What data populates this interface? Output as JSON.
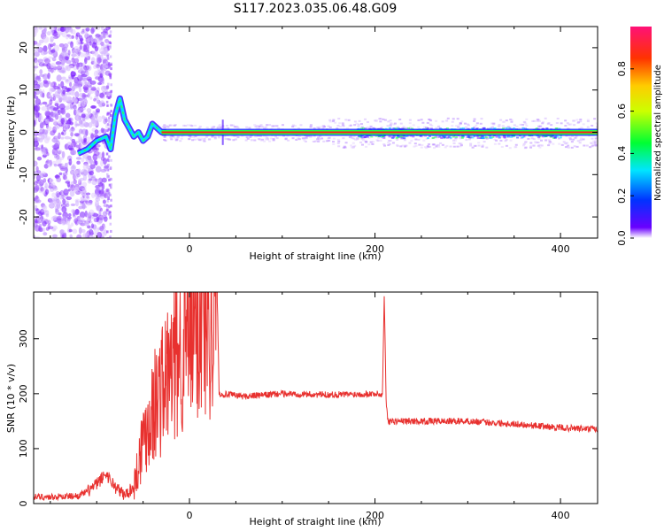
{
  "title": "S117.2023.035.06.48.G09",
  "colors": {
    "snr_line": "#e8312f",
    "carrier_line": "#ff1a1a",
    "frame": "#000000"
  },
  "chart_data": [
    {
      "type": "heatmap",
      "xlabel": "Height of straight line (km)",
      "ylabel": "Frequency (Hz)",
      "xlim": [
        -168,
        440
      ],
      "ylim": [
        -25,
        25
      ],
      "xticks": [
        0,
        200,
        400
      ],
      "yticks": [
        -20,
        -10,
        0,
        10,
        20
      ],
      "colorbar": {
        "label": "Normalized spectral amplitude",
        "range": [
          0,
          1
        ],
        "ticks": [
          "0.0",
          "0.2",
          "0.4",
          "0.6",
          "0.8"
        ]
      },
      "carrier_frequency_hz": 0,
      "trace": {
        "x": [
          -120,
          -110,
          -100,
          -90,
          -85,
          -80,
          -75,
          -70,
          -65,
          -60,
          -55,
          -50,
          -45,
          -40,
          -35,
          -30,
          -25
        ],
        "y": [
          -5,
          -4,
          -2,
          -1,
          -4,
          4,
          8,
          3,
          1,
          -1,
          0,
          -2,
          -1,
          2,
          1,
          0,
          0
        ]
      }
    },
    {
      "type": "line",
      "xlabel": "Height of straight line (km)",
      "ylabel": "SNR (10 * v/v)",
      "xlim": [
        -168,
        440
      ],
      "ylim": [
        0,
        385
      ],
      "xticks": [
        0,
        200,
        400
      ],
      "yticks": [
        0,
        100,
        200,
        300
      ],
      "series": [
        {
          "x": [
            -168,
            -150,
            -120,
            -110,
            -100,
            -90,
            -80,
            -70,
            -60,
            -50,
            -40,
            -30,
            -20,
            -10,
            0,
            10,
            20,
            30,
            32,
            60,
            100,
            150,
            200,
            208,
            210,
            212,
            214,
            250,
            300,
            350,
            400,
            440
          ],
          "y": [
            12,
            12,
            14,
            22,
            35,
            55,
            30,
            15,
            30,
            120,
            170,
            210,
            240,
            280,
            310,
            330,
            355,
            372,
            200,
            195,
            200,
            198,
            200,
            198,
            380,
            190,
            150,
            150,
            150,
            145,
            138,
            135
          ]
        }
      ]
    }
  ]
}
